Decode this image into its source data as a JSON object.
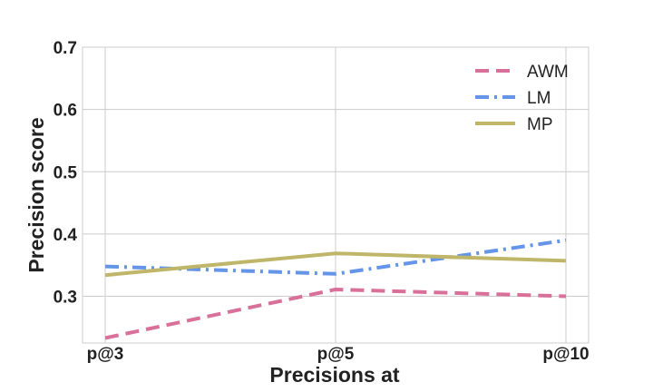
{
  "chart_data": {
    "type": "line",
    "title": "",
    "xlabel": "Precisions at",
    "ylabel": "Precision score",
    "categories": [
      "p@3",
      "p@5",
      "p@10"
    ],
    "ylim": [
      0.225,
      0.7
    ],
    "yticks": [
      0.3,
      0.4,
      0.5,
      0.6,
      0.7
    ],
    "ytick_labels": [
      "0.3",
      "0.4",
      "0.5",
      "0.6",
      "0.7"
    ],
    "grid": true,
    "legend_position": "top-right",
    "series": [
      {
        "name": "AWM",
        "values": [
          0.233,
          0.311,
          0.3
        ],
        "color": "#d9709a",
        "style": "dashed"
      },
      {
        "name": "LM",
        "values": [
          0.348,
          0.336,
          0.39
        ],
        "color": "#6495e8",
        "style": "dashdot"
      },
      {
        "name": "MP",
        "values": [
          0.334,
          0.369,
          0.357
        ],
        "color": "#bfb66a",
        "style": "solid"
      }
    ]
  }
}
